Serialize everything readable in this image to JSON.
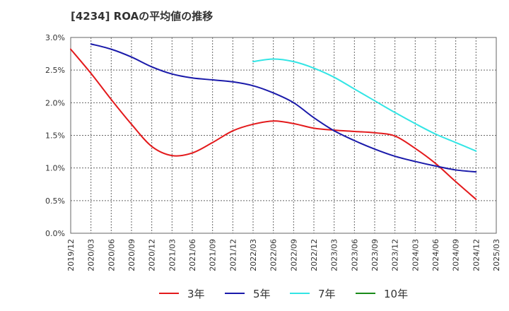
{
  "chart_data": {
    "type": "line",
    "title": "[4234]  ROAの平均値の推移",
    "xlabel": "",
    "ylabel": "",
    "categories": [
      "2019/12",
      "2020/03",
      "2020/06",
      "2020/09",
      "2020/12",
      "2021/03",
      "2021/06",
      "2021/09",
      "2021/12",
      "2022/03",
      "2022/06",
      "2022/09",
      "2022/12",
      "2023/03",
      "2023/06",
      "2023/09",
      "2023/12",
      "2024/03",
      "2024/06",
      "2024/09",
      "2024/12",
      "2025/03"
    ],
    "y_ticks": [
      "0.0%",
      "0.5%",
      "1.0%",
      "1.5%",
      "2.0%",
      "2.5%",
      "3.0%"
    ],
    "ylim": [
      0,
      3.0
    ],
    "grid": true,
    "legend_position": "bottom",
    "series": [
      {
        "name": "3年",
        "color": "#e31a1c",
        "values": [
          2.82,
          2.45,
          2.05,
          1.67,
          1.33,
          1.19,
          1.23,
          1.39,
          1.57,
          1.67,
          1.72,
          1.68,
          1.61,
          1.58,
          1.56,
          1.54,
          1.49,
          1.3,
          1.07,
          0.79,
          0.52,
          null
        ]
      },
      {
        "name": "5年",
        "color": "#1a1aaa",
        "values": [
          null,
          2.9,
          2.82,
          2.7,
          2.55,
          2.44,
          2.38,
          2.35,
          2.32,
          2.26,
          2.15,
          2.0,
          1.77,
          1.57,
          1.42,
          1.29,
          1.18,
          1.1,
          1.03,
          0.97,
          0.94,
          null
        ]
      },
      {
        "name": "7年",
        "color": "#33e5e5",
        "values": [
          null,
          null,
          null,
          null,
          null,
          null,
          null,
          null,
          null,
          2.63,
          2.67,
          2.63,
          2.53,
          2.39,
          2.21,
          2.03,
          1.85,
          1.68,
          1.52,
          1.39,
          1.26,
          null
        ]
      },
      {
        "name": "10年",
        "color": "#1a8a1a",
        "values": [
          null,
          null,
          null,
          null,
          null,
          null,
          null,
          null,
          null,
          null,
          null,
          null,
          null,
          null,
          null,
          null,
          null,
          null,
          null,
          null,
          null,
          null
        ]
      }
    ]
  }
}
